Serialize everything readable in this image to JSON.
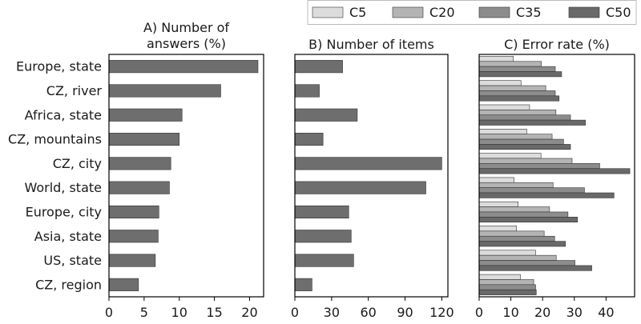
{
  "chart_data": {
    "type": "bar",
    "orientation": "horizontal",
    "categories": [
      "Europe, state",
      "CZ, river",
      "Africa, state",
      "CZ, mountains",
      "CZ, city",
      "World, state",
      "Europe, city",
      "Asia, state",
      "US, state",
      "CZ, region"
    ],
    "legend": {
      "placement": "top-right",
      "entries": [
        {
          "name": "C5",
          "color": "#dcdcdc"
        },
        {
          "name": "C20",
          "color": "#b4b4b4"
        },
        {
          "name": "C35",
          "color": "#8c8c8c"
        },
        {
          "name": "C50",
          "color": "#696969"
        }
      ]
    },
    "panels": [
      {
        "title": "A) Number of answers (%)",
        "title_lines": [
          "A) Number of",
          "answers (%)"
        ],
        "xlim": [
          0,
          22
        ],
        "xticks": [
          0,
          5,
          10,
          15,
          20
        ],
        "grid": false,
        "bar_color": "#6e6e6e",
        "series": [
          {
            "values": [
              21.2,
              15.9,
              10.4,
              10.0,
              8.8,
              8.6,
              7.1,
              7.0,
              6.6,
              4.2
            ]
          }
        ]
      },
      {
        "title": "B) Number of items",
        "title_lines": [
          "B) Number of items"
        ],
        "xlim": [
          0,
          125
        ],
        "xticks": [
          0,
          30,
          60,
          90,
          120
        ],
        "grid": false,
        "bar_color": "#6e6e6e",
        "series": [
          {
            "values": [
              39,
              20,
              51,
              23,
              120,
              107,
              44,
              46,
              48,
              14
            ]
          }
        ]
      },
      {
        "title": "C) Error rate (%)",
        "title_lines": [
          "C) Error rate (%)"
        ],
        "xlim": [
          0,
          49
        ],
        "xticks": [
          0,
          10,
          20,
          30,
          40
        ],
        "grid": false,
        "series": [
          {
            "name": "C5",
            "values": [
              10.8,
              13.2,
              15.9,
              15.0,
              19.5,
              11.0,
              12.3,
              11.8,
              17.8,
              13.0
            ]
          },
          {
            "name": "C20",
            "values": [
              19.6,
              21.0,
              24.2,
              23.0,
              29.3,
              23.3,
              22.2,
              20.5,
              24.3,
              17.2
            ]
          },
          {
            "name": "C35",
            "values": [
              24.0,
              24.0,
              28.8,
              26.6,
              38.0,
              33.2,
              28.0,
              23.8,
              30.2,
              17.8
            ]
          },
          {
            "name": "C50",
            "values": [
              26.0,
              25.2,
              33.5,
              28.8,
              47.5,
              42.5,
              31.0,
              27.2,
              35.5,
              18.0
            ]
          }
        ]
      }
    ]
  }
}
